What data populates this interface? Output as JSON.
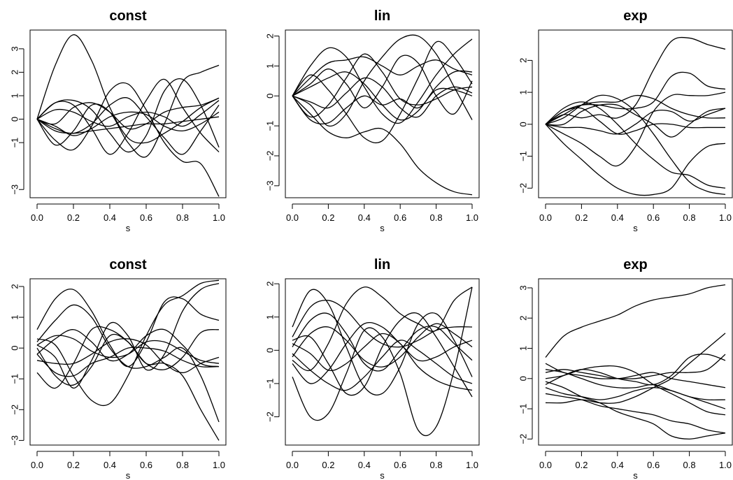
{
  "chart_data": [
    {
      "type": "line",
      "title": "const",
      "xlabel": "s",
      "ylabel": "",
      "xlim": [
        0,
        1
      ],
      "ylim": [
        -3.35,
        3.8
      ],
      "xticks": [
        "0.0",
        "0.2",
        "0.4",
        "0.6",
        "0.8",
        "1.0"
      ],
      "yticks": [
        "−3",
        "−1",
        "0",
        "1",
        "2",
        "3"
      ],
      "ytick_values": [
        -3,
        -1,
        0,
        1,
        2,
        3
      ],
      "x": [
        0,
        0.1,
        0.2,
        0.3,
        0.4,
        0.5,
        0.6,
        0.7,
        0.8,
        0.9,
        1.0
      ],
      "series": [
        {
          "values": [
            0,
            2.3,
            3.6,
            2.5,
            0.5,
            -0.8,
            -1.0,
            -0.6,
            -0.1,
            0.5,
            0.9
          ]
        },
        {
          "values": [
            0,
            0.7,
            0.6,
            -0.4,
            -1.5,
            -0.6,
            0.8,
            1.7,
            0.5,
            -0.6,
            -1.4
          ]
        },
        {
          "values": [
            0,
            -0.9,
            -1.3,
            -0.3,
            1.2,
            1.5,
            0.4,
            -1.0,
            -1.8,
            -1.9,
            -3.3
          ]
        },
        {
          "values": [
            0,
            -1.1,
            -0.5,
            0.6,
            0.3,
            -1.0,
            -1.6,
            -0.2,
            1.6,
            2.0,
            2.3
          ]
        },
        {
          "values": [
            0,
            -0.4,
            -0.6,
            -0.2,
            0.6,
            0.9,
            0.1,
            -0.8,
            -1.5,
            -0.5,
            0.6
          ]
        },
        {
          "values": [
            0,
            -0.5,
            -0.6,
            -0.5,
            -0.4,
            -0.3,
            -0.2,
            -0.2,
            -0.1,
            0.0,
            0.1
          ]
        },
        {
          "values": [
            0,
            -0.3,
            -0.7,
            -0.4,
            0.1,
            0.3,
            0.2,
            -0.3,
            -0.5,
            -0.2,
            0.3
          ]
        },
        {
          "values": [
            0,
            0.7,
            0.8,
            0.4,
            -0.6,
            -1.4,
            -0.7,
            1.2,
            1.7,
            0.6,
            -1.2
          ]
        },
        {
          "values": [
            0,
            0.4,
            0.3,
            -0.1,
            -0.3,
            0.1,
            0.3,
            0.1,
            -0.3,
            0.2,
            0.8
          ]
        },
        {
          "values": [
            0,
            -0.2,
            0.5,
            0.7,
            0.3,
            -0.4,
            -0.2,
            0.3,
            0.5,
            0.6,
            0.9
          ]
        }
      ]
    },
    {
      "type": "line",
      "title": "lin",
      "xlabel": "s",
      "ylabel": "",
      "xlim": [
        0,
        1
      ],
      "ylim": [
        -3.4,
        2.2
      ],
      "xticks": [
        "0.0",
        "0.2",
        "0.4",
        "0.6",
        "0.8",
        "1.0"
      ],
      "yticks": [
        "−3",
        "−2",
        "−1",
        "0",
        "1",
        "2"
      ],
      "ytick_values": [
        -3,
        -2,
        -1,
        0,
        1,
        2
      ],
      "x": [
        0,
        0.1,
        0.2,
        0.3,
        0.4,
        0.5,
        0.6,
        0.7,
        0.8,
        0.9,
        1.0
      ],
      "series": [
        {
          "values": [
            0,
            1.0,
            1.6,
            1.3,
            0.3,
            -0.6,
            -0.9,
            -0.2,
            0.7,
            1.4,
            1.9
          ]
        },
        {
          "values": [
            0,
            -0.6,
            -1.2,
            -1.4,
            -1.2,
            -1.1,
            -1.6,
            -2.4,
            -2.9,
            -3.2,
            -3.3
          ]
        },
        {
          "values": [
            0,
            0.6,
            1.1,
            1.2,
            1.3,
            1.0,
            0.7,
            1.0,
            1.2,
            0.9,
            0.7
          ]
        },
        {
          "values": [
            0,
            -0.3,
            -1.0,
            -0.6,
            0.5,
            1.3,
            1.9,
            2.0,
            1.4,
            0.3,
            -0.8
          ]
        },
        {
          "values": [
            0,
            0.7,
            0.2,
            -0.6,
            -1.4,
            -1.5,
            -0.6,
            0.6,
            1.8,
            1.3,
            0.4
          ]
        },
        {
          "values": [
            0,
            0.4,
            0.9,
            0.4,
            -0.4,
            0.3,
            1.3,
            1.1,
            0.0,
            -0.6,
            0.5
          ]
        },
        {
          "values": [
            0,
            -0.2,
            -0.4,
            0.1,
            0.6,
            0.3,
            -0.4,
            -0.7,
            0.0,
            0.3,
            0.1
          ]
        },
        {
          "values": [
            0,
            -0.8,
            -0.9,
            -0.4,
            0.0,
            -0.3,
            -0.1,
            -0.4,
            0.2,
            0.2,
            0.0
          ]
        },
        {
          "values": [
            0,
            0.3,
            0.6,
            0.8,
            0.4,
            -0.3,
            -0.8,
            -0.5,
            0.3,
            0.8,
            0.8
          ]
        },
        {
          "values": [
            0,
            -0.7,
            -0.3,
            0.6,
            1.4,
            0.8,
            -0.1,
            -0.3,
            -0.1,
            0.2,
            0.3
          ]
        }
      ]
    },
    {
      "type": "line",
      "title": "exp",
      "xlabel": "s",
      "ylabel": "",
      "xlim": [
        0,
        1
      ],
      "ylim": [
        -2.3,
        2.95
      ],
      "xticks": [
        "0.0",
        "0.2",
        "0.4",
        "0.6",
        "0.8",
        "1.0"
      ],
      "yticks": [
        "−2",
        "−1",
        "0",
        "1",
        "2"
      ],
      "ytick_values": [
        -2,
        -1,
        0,
        1,
        2
      ],
      "x": [
        0,
        0.1,
        0.2,
        0.3,
        0.4,
        0.5,
        0.6,
        0.7,
        0.8,
        0.9,
        1.0
      ],
      "series": [
        {
          "values": [
            0,
            -0.6,
            -1.1,
            -1.6,
            -2.0,
            -2.2,
            -2.2,
            -2.0,
            -1.2,
            -0.7,
            -0.6
          ]
        },
        {
          "values": [
            0,
            0.3,
            0.2,
            0.3,
            0.2,
            0.6,
            1.7,
            2.6,
            2.7,
            2.5,
            2.35
          ]
        },
        {
          "values": [
            0,
            0.4,
            0.6,
            0.6,
            0.5,
            0.5,
            0.7,
            1.5,
            1.6,
            1.2,
            1.1
          ]
        },
        {
          "values": [
            0,
            0.5,
            0.7,
            0.5,
            0.0,
            -0.6,
            -1.1,
            -1.5,
            -1.6,
            -1.9,
            -2.0
          ]
        },
        {
          "values": [
            0,
            -0.1,
            -0.1,
            -0.2,
            -0.3,
            0.0,
            0.4,
            0.4,
            0.1,
            0.3,
            0.5
          ]
        },
        {
          "values": [
            0,
            0.2,
            0.6,
            0.9,
            0.8,
            0.4,
            -0.3,
            -1.1,
            -1.8,
            -2.1,
            -2.2
          ]
        },
        {
          "values": [
            0,
            0.0,
            0.4,
            0.6,
            0.6,
            0.3,
            0.0,
            -0.4,
            0.0,
            0.4,
            0.5
          ]
        },
        {
          "values": [
            0,
            -0.3,
            -0.6,
            -1.0,
            -1.3,
            -0.7,
            0.4,
            0.9,
            0.9,
            0.9,
            1.0
          ]
        },
        {
          "values": [
            0,
            0.3,
            0.6,
            0.7,
            0.7,
            0.9,
            0.8,
            0.5,
            0.3,
            0.2,
            0.2
          ]
        },
        {
          "values": [
            0,
            0.4,
            0.5,
            0.1,
            -0.3,
            -0.2,
            0.0,
            0.0,
            -0.1,
            -0.1,
            -0.1
          ]
        }
      ]
    },
    {
      "type": "line",
      "title": "const",
      "xlabel": "s",
      "ylabel": "",
      "xlim": [
        0,
        1
      ],
      "ylim": [
        -3.15,
        2.25
      ],
      "xticks": [
        "0.0",
        "0.2",
        "0.4",
        "0.6",
        "0.8",
        "1.0"
      ],
      "yticks": [
        "−3",
        "−2",
        "−1",
        "0",
        "1",
        "2"
      ],
      "ytick_values": [
        -3,
        -2,
        -1,
        0,
        1,
        2
      ],
      "x": [
        0,
        0.1,
        0.2,
        0.3,
        0.4,
        0.5,
        0.6,
        0.7,
        0.8,
        0.9,
        1.0
      ],
      "series": [
        {
          "values": [
            0.6,
            1.6,
            1.9,
            1.2,
            0.1,
            -0.6,
            0.2,
            1.5,
            1.6,
            1.1,
            0.9
          ]
        },
        {
          "values": [
            -0.8,
            -1.3,
            -0.5,
            0.6,
            0.6,
            0.2,
            -0.5,
            -0.5,
            -0.9,
            -2.0,
            -3.0
          ]
        },
        {
          "values": [
            0.2,
            0.9,
            1.4,
            1.0,
            0.0,
            -0.6,
            -0.6,
            -0.3,
            0.0,
            -0.9,
            -2.4
          ]
        },
        {
          "values": [
            0.1,
            -0.3,
            -1.3,
            -0.4,
            0.8,
            0.4,
            -0.7,
            -0.2,
            1.2,
            1.9,
            2.1
          ]
        },
        {
          "values": [
            -0.4,
            -0.5,
            -0.5,
            -0.2,
            0.2,
            0.3,
            0.1,
            -0.5,
            -0.8,
            -0.5,
            -0.3
          ]
        },
        {
          "values": [
            -0.2,
            0.3,
            0.6,
            0.2,
            -0.4,
            -0.2,
            0.4,
            0.6,
            0.1,
            -0.5,
            -0.6
          ]
        },
        {
          "values": [
            0.3,
            0.1,
            -0.9,
            -1.7,
            -1.8,
            -0.9,
            0.4,
            1.4,
            1.7,
            2.1,
            2.2
          ]
        },
        {
          "values": [
            0.0,
            -0.9,
            -1.2,
            -0.6,
            0.4,
            0.2,
            -0.5,
            -0.7,
            -0.3,
            0.5,
            0.6
          ]
        },
        {
          "values": [
            0.1,
            0.4,
            0.3,
            -0.1,
            -0.3,
            -0.2,
            0.2,
            0.2,
            -0.1,
            -0.4,
            -0.5
          ]
        },
        {
          "values": [
            -0.2,
            -0.8,
            -0.9,
            -0.5,
            -0.3,
            0.0,
            0.0,
            -0.1,
            -0.4,
            -0.6,
            -0.6
          ]
        }
      ]
    },
    {
      "type": "line",
      "title": "lin",
      "xlabel": "s",
      "ylabel": "",
      "xlim": [
        0,
        1
      ],
      "ylim": [
        -2.85,
        2.15
      ],
      "xticks": [
        "0.0",
        "0.2",
        "0.4",
        "0.6",
        "0.8",
        "1.0"
      ],
      "yticks": [
        "−2",
        "−1",
        "0",
        "1",
        "2"
      ],
      "ytick_values": [
        -2,
        -1,
        0,
        1,
        2
      ],
      "x": [
        0,
        0.1,
        0.2,
        0.3,
        0.4,
        0.5,
        0.6,
        0.7,
        0.8,
        0.9,
        1.0
      ],
      "series": [
        {
          "values": [
            0.7,
            1.8,
            1.4,
            0.1,
            -1.1,
            -1.3,
            -0.5,
            0.8,
            1.1,
            0.3,
            -0.8
          ]
        },
        {
          "values": [
            -0.8,
            -2.0,
            -1.9,
            -0.7,
            0.6,
            0.4,
            -0.7,
            -2.4,
            -2.3,
            -0.6,
            1.9
          ]
        },
        {
          "values": [
            0.4,
            1.3,
            1.5,
            1.2,
            0.6,
            0.2,
            0.1,
            0.3,
            0.6,
            0.7,
            0.7
          ]
        },
        {
          "values": [
            -0.3,
            -0.6,
            0.2,
            1.4,
            1.9,
            1.6,
            1.1,
            0.8,
            0.6,
            1.5,
            1.9
          ]
        },
        {
          "values": [
            0.1,
            0.9,
            1.1,
            0.5,
            -0.4,
            -0.6,
            0.0,
            0.6,
            0.7,
            0.2,
            -0.3
          ]
        },
        {
          "values": [
            -0.1,
            -0.6,
            -1.0,
            -1.2,
            -0.8,
            -0.2,
            0.3,
            0.0,
            -0.4,
            -0.8,
            -1.0
          ]
        },
        {
          "values": [
            0.2,
            -0.1,
            -0.6,
            -0.4,
            0.1,
            0.5,
            0.2,
            -0.5,
            -0.9,
            -1.1,
            -1.2
          ]
        },
        {
          "values": [
            -0.2,
            0.5,
            0.7,
            0.3,
            -0.3,
            -0.5,
            -0.2,
            0.4,
            0.8,
            0.5,
            0.1
          ]
        },
        {
          "values": [
            0.3,
            0.4,
            -0.4,
            -1.3,
            -1.1,
            0.1,
            0.9,
            1.1,
            0.4,
            -0.5,
            -1.4
          ]
        },
        {
          "values": [
            -0.4,
            -1.0,
            -0.6,
            0.2,
            0.8,
            0.7,
            0.2,
            -0.3,
            -0.2,
            0.1,
            0.3
          ]
        }
      ]
    },
    {
      "type": "line",
      "title": "exp",
      "xlabel": "s",
      "ylabel": "",
      "xlim": [
        0,
        1
      ],
      "ylim": [
        -2.2,
        3.3
      ],
      "xticks": [
        "0.0",
        "0.2",
        "0.4",
        "0.6",
        "0.8",
        "1.0"
      ],
      "yticks": [
        "−2",
        "−1",
        "0",
        "1",
        "2",
        "3"
      ],
      "ytick_values": [
        -2,
        -1,
        0,
        1,
        2,
        3
      ],
      "x": [
        0,
        0.1,
        0.2,
        0.3,
        0.4,
        0.5,
        0.6,
        0.7,
        0.8,
        0.9,
        1.0
      ],
      "series": [
        {
          "values": [
            0.7,
            1.4,
            1.7,
            1.9,
            2.1,
            2.4,
            2.6,
            2.7,
            2.8,
            3.0,
            3.1
          ]
        },
        {
          "values": [
            -0.8,
            -0.8,
            -0.7,
            -0.8,
            -0.8,
            -0.6,
            -0.3,
            0.0,
            0.5,
            1.0,
            1.5
          ]
        },
        {
          "values": [
            0.5,
            0.2,
            0.1,
            0.0,
            0.0,
            0.0,
            0.1,
            0.2,
            0.2,
            0.3,
            0.8
          ]
        },
        {
          "values": [
            -0.2,
            0.1,
            0.3,
            0.2,
            0.0,
            -0.1,
            -0.2,
            0.1,
            0.7,
            0.8,
            0.6
          ]
        },
        {
          "values": [
            -0.3,
            -0.5,
            -0.6,
            -0.7,
            -0.6,
            -0.4,
            -0.3,
            -0.4,
            -0.6,
            -0.7,
            -0.7
          ]
        },
        {
          "values": [
            0.2,
            0.3,
            0.2,
            0.1,
            0.0,
            0.1,
            0.2,
            0.0,
            -0.1,
            -0.2,
            -0.3
          ]
        },
        {
          "values": [
            -0.5,
            -0.6,
            -0.7,
            -0.9,
            -1.0,
            -1.1,
            -1.2,
            -1.4,
            -1.5,
            -1.7,
            -1.8
          ]
        },
        {
          "values": [
            0.0,
            0.1,
            0.3,
            0.4,
            0.4,
            0.2,
            -0.2,
            -0.5,
            -0.8,
            -1.1,
            -1.2
          ]
        },
        {
          "values": [
            -0.1,
            -0.3,
            -0.6,
            -0.8,
            -1.1,
            -1.3,
            -1.5,
            -1.9,
            -2.0,
            -1.9,
            -1.8
          ]
        },
        {
          "values": [
            0.3,
            0.2,
            0.0,
            -0.2,
            -0.3,
            -0.3,
            -0.2,
            -0.4,
            -0.6,
            -0.8,
            -1.0
          ]
        }
      ]
    }
  ]
}
